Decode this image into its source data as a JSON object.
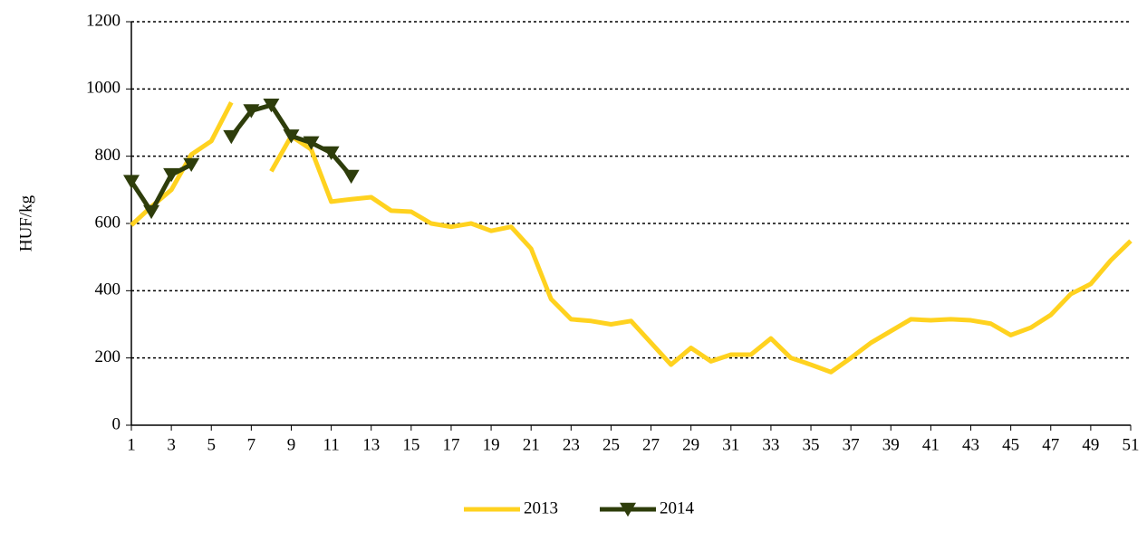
{
  "chart_data": {
    "type": "line",
    "y_label": "HUF/kg",
    "x": [
      1,
      2,
      3,
      4,
      5,
      6,
      7,
      8,
      9,
      10,
      11,
      12,
      13,
      14,
      15,
      16,
      17,
      18,
      19,
      20,
      21,
      22,
      23,
      24,
      25,
      26,
      27,
      28,
      29,
      30,
      31,
      32,
      33,
      34,
      35,
      36,
      37,
      38,
      39,
      40,
      41,
      42,
      43,
      44,
      45,
      46,
      47,
      48,
      49,
      50,
      51
    ],
    "series": [
      {
        "name": "2013",
        "color": "#ffd21f",
        "marker": "none",
        "values": [
          595,
          650,
          700,
          805,
          845,
          960,
          null,
          755,
          860,
          820,
          665,
          672,
          678,
          638,
          635,
          600,
          590,
          600,
          578,
          590,
          525,
          375,
          315,
          310,
          300,
          310,
          245,
          180,
          230,
          190,
          210,
          210,
          258,
          200,
          180,
          158,
          200,
          245,
          280,
          315,
          312,
          315,
          312,
          302,
          268,
          290,
          328,
          390,
          420,
          490,
          548
        ]
      },
      {
        "name": "2014",
        "color": "#2e3d0b",
        "marker": "triangle-down",
        "values": [
          725,
          635,
          745,
          775,
          null,
          858,
          935,
          952,
          860,
          840,
          810,
          740,
          null,
          null,
          null,
          null,
          null,
          null,
          null,
          null,
          null,
          null,
          null,
          null,
          null,
          null,
          null,
          null,
          null,
          null,
          null,
          null,
          null,
          null,
          null,
          null,
          null,
          null,
          null,
          null,
          null,
          null,
          null,
          null,
          null,
          null,
          null,
          null,
          null,
          null,
          null
        ]
      }
    ],
    "xlim": [
      1,
      51
    ],
    "xticks": [
      1,
      3,
      5,
      7,
      9,
      11,
      13,
      15,
      17,
      19,
      21,
      23,
      25,
      27,
      29,
      31,
      33,
      35,
      37,
      39,
      41,
      43,
      45,
      47,
      49,
      51
    ],
    "ylim": [
      0,
      1200
    ],
    "yticks": [
      0,
      200,
      400,
      600,
      800,
      1000,
      1200
    ],
    "grid": true,
    "legend": "bottom"
  }
}
